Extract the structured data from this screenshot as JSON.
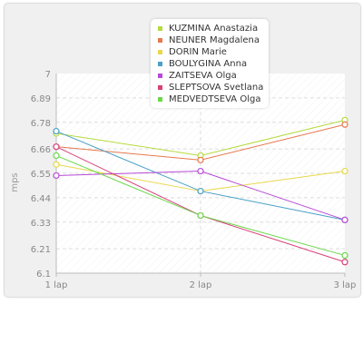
{
  "chart_data": {
    "type": "line",
    "title": "",
    "xlabel": "",
    "ylabel": "mps",
    "categories": [
      "1 lap",
      "2 lap",
      "3 lap"
    ],
    "ylim": [
      6.1,
      7
    ],
    "yticks": [
      "7",
      "6.89",
      "6.78",
      "6.66",
      "6.55",
      "6.44",
      "6.33",
      "6.21",
      "6.1"
    ],
    "grid": true,
    "legend_position": "top",
    "series": [
      {
        "name": "KUZMINA Anastazia",
        "color": "#b5db3e",
        "values": [
          6.73,
          6.63,
          6.79
        ]
      },
      {
        "name": "NEUNER Magdalena",
        "color": "#e8784e",
        "values": [
          6.67,
          6.61,
          6.77
        ]
      },
      {
        "name": "DORIN Marie",
        "color": "#e8d84a",
        "values": [
          6.59,
          6.47,
          6.56
        ]
      },
      {
        "name": "BOULYGINA Anna",
        "color": "#4aa0c8",
        "values": [
          6.74,
          6.47,
          6.34
        ]
      },
      {
        "name": "ZAITSEVA Olga",
        "color": "#b84ad8",
        "values": [
          6.54,
          6.56,
          6.34
        ]
      },
      {
        "name": "SLEPTSOVA Svetlana",
        "color": "#d8407a",
        "values": [
          6.67,
          6.36,
          6.15
        ]
      },
      {
        "name": "MEDVEDTSEVA Olga",
        "color": "#6ad84a",
        "values": [
          6.63,
          6.36,
          6.18
        ]
      }
    ]
  }
}
